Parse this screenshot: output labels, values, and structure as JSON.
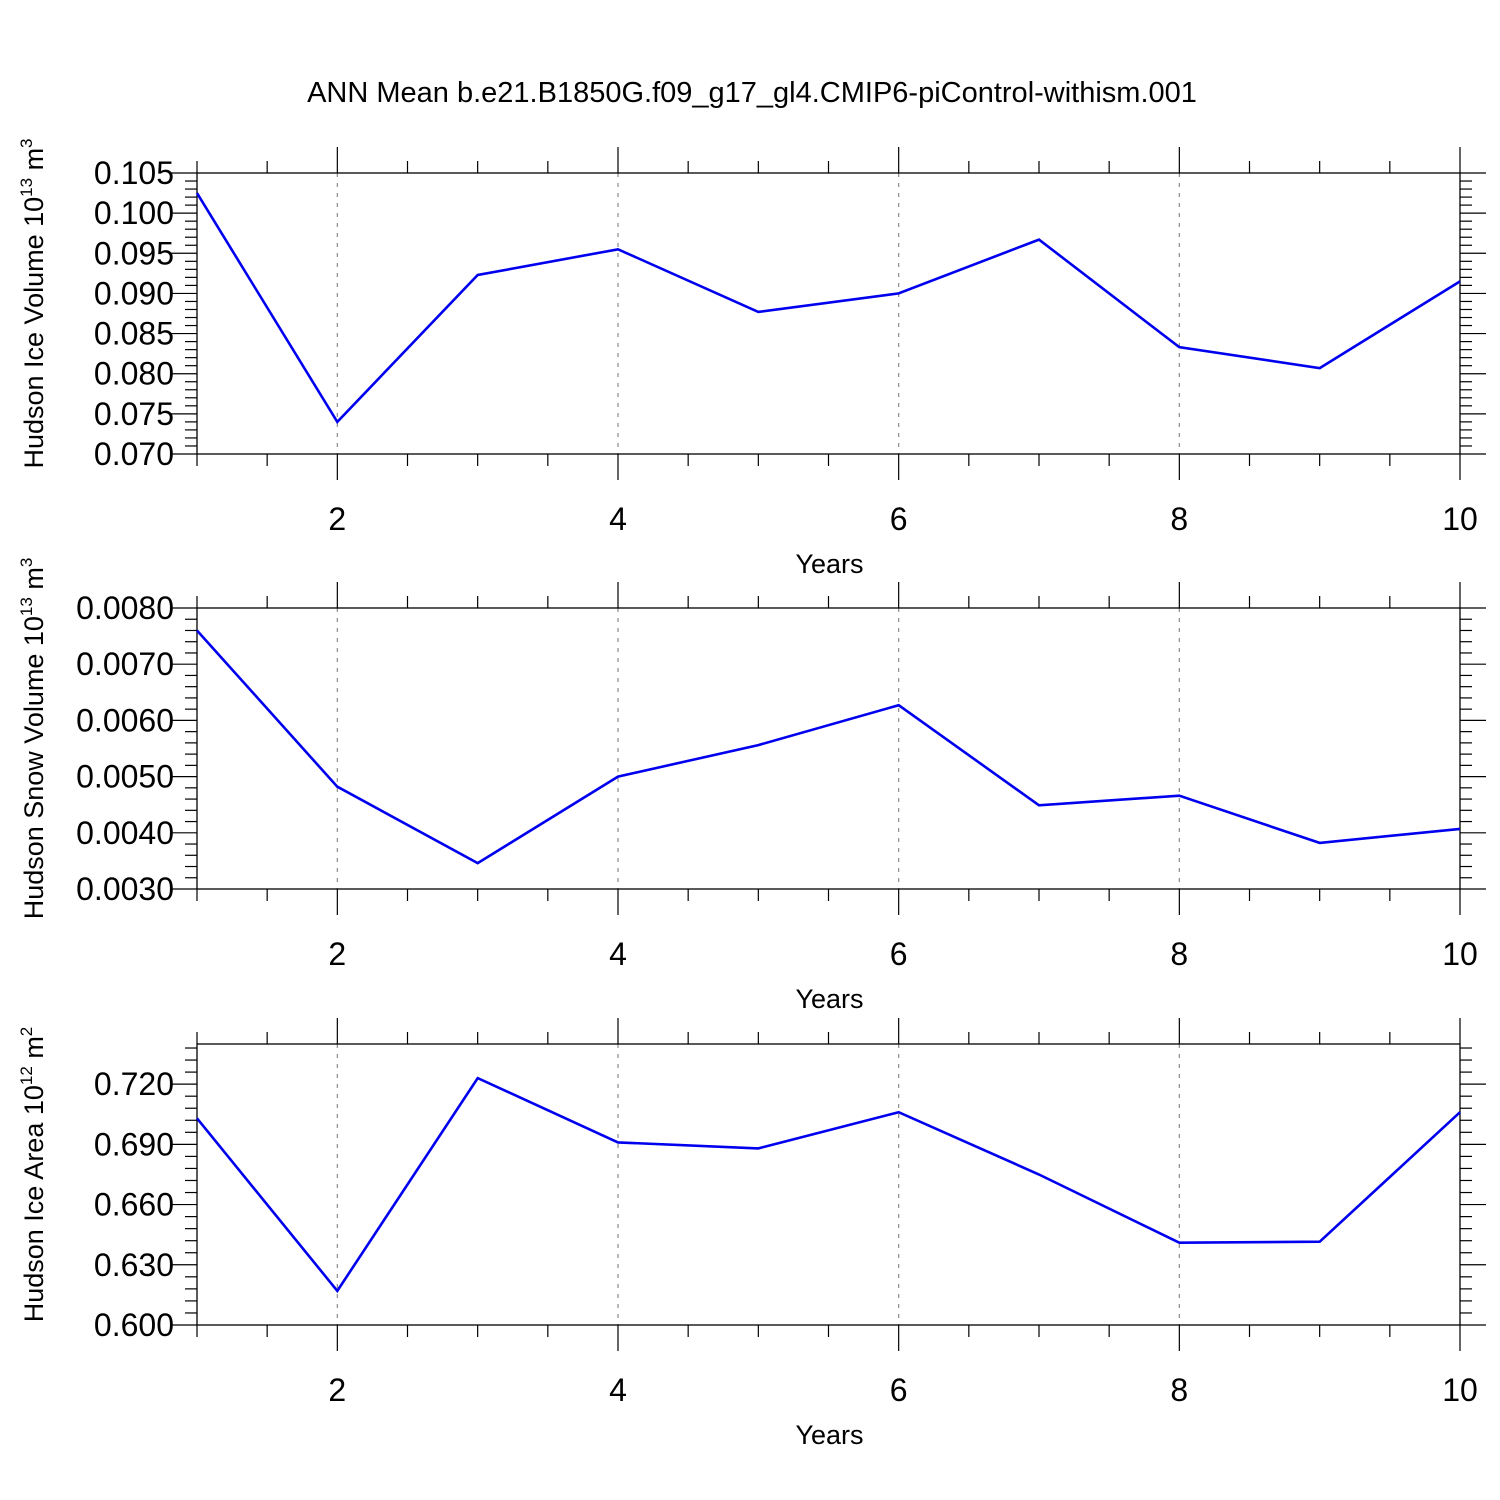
{
  "title": "ANN Mean b.e21.B1850G.f09_g17_gl4.CMIP6-piControl-withism.001",
  "colors": {
    "series": "#0000ee",
    "grid": "#8c8c8c",
    "axes": "#000000"
  },
  "chart_data": [
    {
      "type": "line",
      "xlabel": "Years",
      "ylabel": {
        "text": "Hudson Ice Volume 10",
        "exp": "13",
        "unit": " m",
        "unit_exp": "3"
      },
      "xlim": [
        1,
        10
      ],
      "ylim": [
        0.07,
        0.105
      ],
      "xticks": [
        2,
        4,
        6,
        8,
        10
      ],
      "yticks": [
        "0.070",
        "0.075",
        "0.080",
        "0.085",
        "0.090",
        "0.095",
        "0.100",
        "0.105"
      ],
      "grid": "vertical dashed at major x ticks",
      "x": [
        1,
        2,
        3,
        4,
        5,
        6,
        7,
        8,
        9,
        10
      ],
      "y": [
        0.1025,
        0.074,
        0.0923,
        0.0955,
        0.0877,
        0.09,
        0.0967,
        0.0833,
        0.0807,
        0.0915
      ]
    },
    {
      "type": "line",
      "xlabel": "Years",
      "ylabel": {
        "text": "Hudson Snow Volume 10",
        "exp": "13",
        "unit": " m",
        "unit_exp": "3"
      },
      "xlim": [
        1,
        10
      ],
      "ylim": [
        0.003,
        0.008
      ],
      "xticks": [
        2,
        4,
        6,
        8,
        10
      ],
      "yticks": [
        "0.0030",
        "0.0040",
        "0.0050",
        "0.0060",
        "0.0070",
        "0.0080"
      ],
      "grid": "vertical dashed at major x ticks",
      "x": [
        1,
        2,
        3,
        4,
        5,
        6,
        7,
        8,
        9,
        10
      ],
      "y": [
        0.0076,
        0.00482,
        0.00346,
        0.005,
        0.00556,
        0.00627,
        0.00449,
        0.00466,
        0.00382,
        0.00407
      ]
    },
    {
      "type": "line",
      "xlabel": "Years",
      "ylabel": {
        "text": "Hudson Ice Area 10",
        "exp": "12",
        "unit": " m",
        "unit_exp": "2"
      },
      "xlim": [
        1,
        10
      ],
      "ylim": [
        0.6,
        0.74
      ],
      "xticks": [
        2,
        4,
        6,
        8,
        10
      ],
      "yticks": [
        "0.600",
        "0.630",
        "0.660",
        "0.690",
        "0.720"
      ],
      "grid": "vertical dashed at major x ticks",
      "x": [
        1,
        2,
        3,
        4,
        5,
        6,
        7,
        8,
        9,
        10
      ],
      "y": [
        0.703,
        0.617,
        0.723,
        0.691,
        0.688,
        0.706,
        0.675,
        0.641,
        0.6415,
        0.706
      ]
    }
  ]
}
